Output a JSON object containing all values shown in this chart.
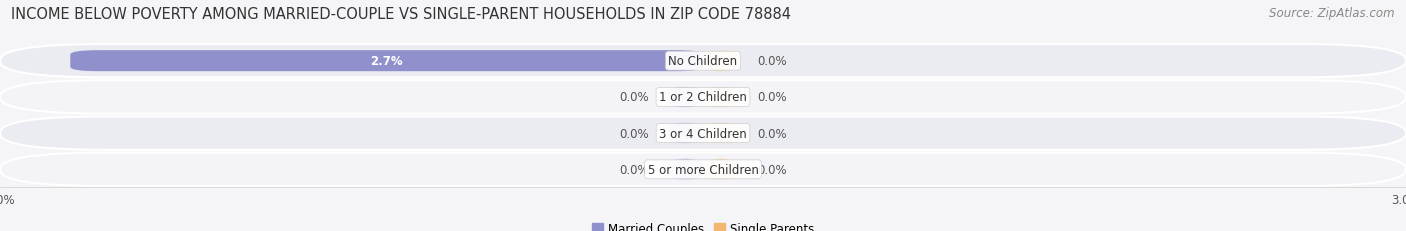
{
  "title": "INCOME BELOW POVERTY AMONG MARRIED-COUPLE VS SINGLE-PARENT HOUSEHOLDS IN ZIP CODE 78884",
  "source_text": "Source: ZipAtlas.com",
  "categories": [
    "No Children",
    "1 or 2 Children",
    "3 or 4 Children",
    "5 or more Children"
  ],
  "married_values": [
    2.7,
    0.0,
    0.0,
    0.0
  ],
  "single_values": [
    0.0,
    0.0,
    0.0,
    0.0
  ],
  "xlim": 3.0,
  "married_color": "#9090cc",
  "married_color_light": "#b0b0dd",
  "single_color": "#f0b870",
  "single_color_light": "#f5d0a0",
  "row_bg_odd": "#ebebf2",
  "row_bg_even": "#f3f3f8",
  "fig_bg": "#f5f5f8",
  "title_fontsize": 10.5,
  "source_fontsize": 8.5,
  "label_fontsize": 8.5,
  "category_fontsize": 8.5,
  "axis_label_fontsize": 8.5,
  "married_label": "Married Couples",
  "single_label": "Single Parents",
  "zero_stub": 0.15
}
